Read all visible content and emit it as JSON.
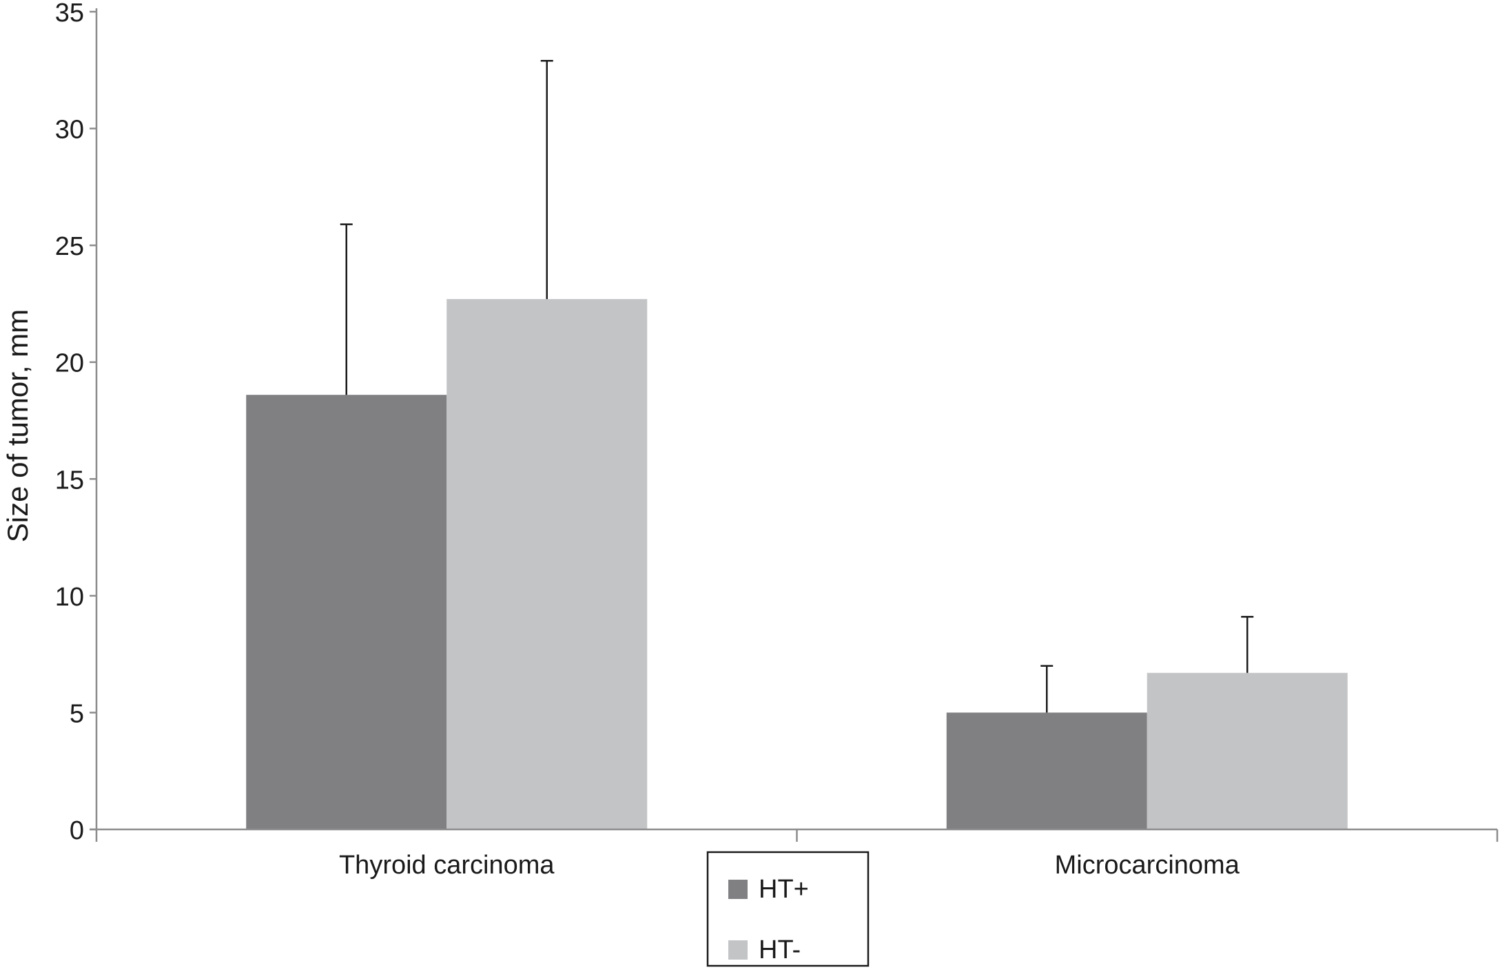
{
  "chart_data": {
    "type": "bar",
    "title": "",
    "xlabel": "",
    "ylabel": "Size of tumor, mm",
    "ylim": [
      0,
      35
    ],
    "yticks": [
      0,
      5,
      10,
      15,
      20,
      25,
      30,
      35
    ],
    "grid": false,
    "legend_position": "bottom-center",
    "categories": [
      "Thyroid carcinoma",
      "Microcarcinoma"
    ],
    "series": [
      {
        "name": "HT+",
        "color": "#808083",
        "values": [
          18.6,
          5.0
        ],
        "error_upper": [
          7.3,
          2.0
        ]
      },
      {
        "name": "HT-",
        "color": "#c3c4c6",
        "values": [
          22.7,
          6.7
        ],
        "error_upper": [
          10.2,
          2.4
        ]
      }
    ]
  }
}
